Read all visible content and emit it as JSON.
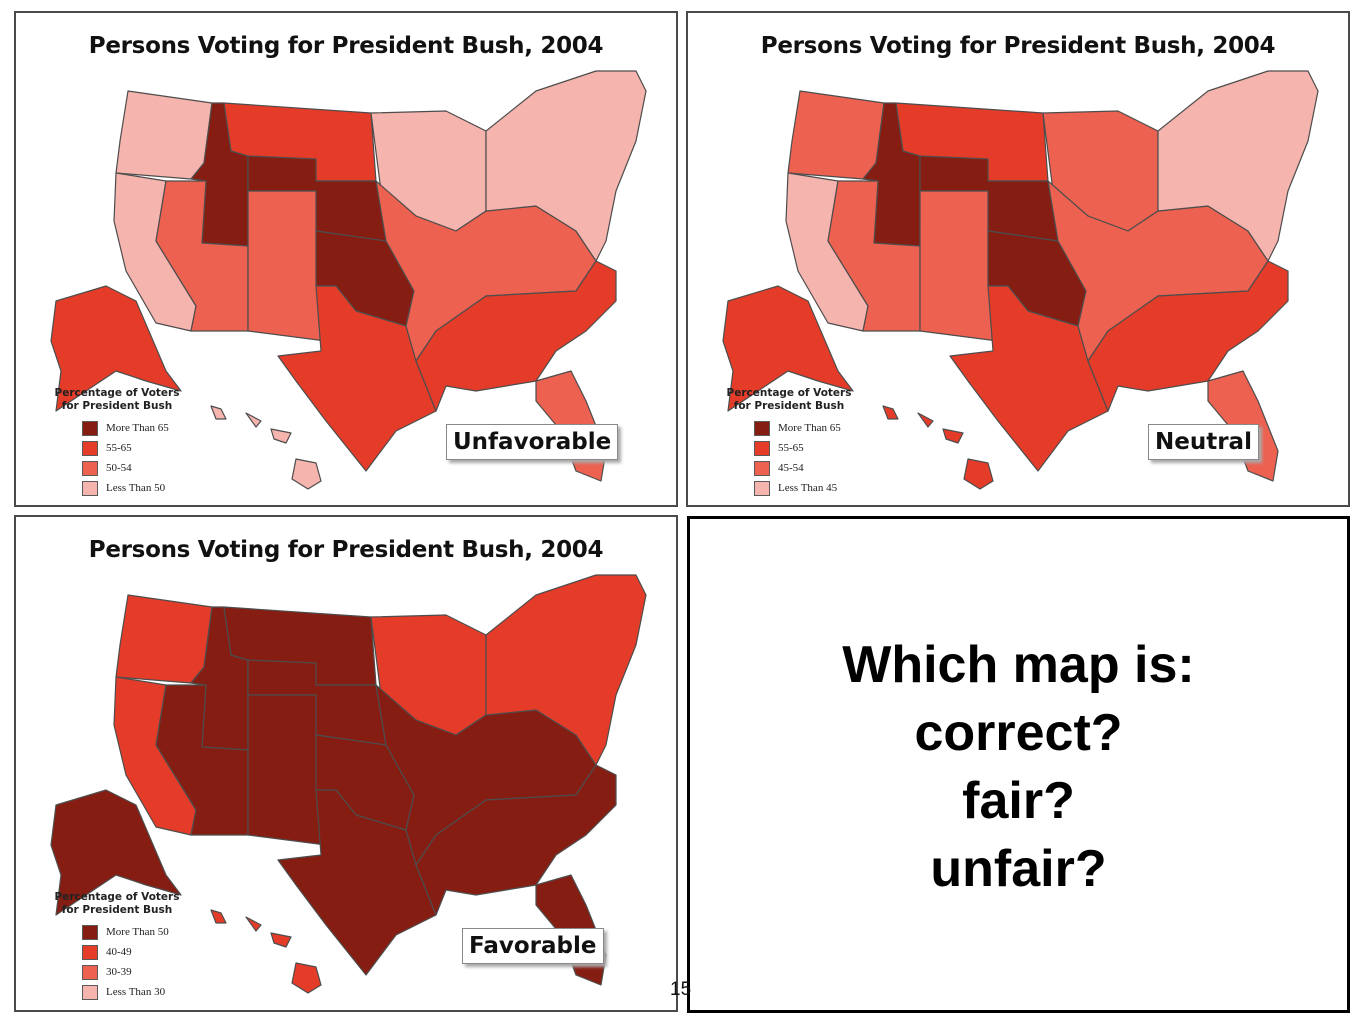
{
  "colors": {
    "darkest": "#861d12",
    "dark": "#e43c28",
    "medium": "#ec6150",
    "light": "#f5b4ad",
    "border": "#4d4d4d"
  },
  "maps": [
    {
      "title": "Persons Voting for President Bush, 2004",
      "label": "Unfavorable",
      "legend": {
        "title_line1": "Percentage of Voters",
        "title_line2": "for President Bush",
        "items": [
          {
            "label": "More Than 65",
            "color": "#861d12"
          },
          {
            "label": "55-65",
            "color": "#e43c28"
          },
          {
            "label": "50-54",
            "color": "#ec6150"
          },
          {
            "label": "Less Than 50",
            "color": "#f5b4ad"
          }
        ]
      },
      "regions": [
        {
          "name": "pacific-northwest",
          "color": "#f5b4ad"
        },
        {
          "name": "california",
          "color": "#f5b4ad"
        },
        {
          "name": "idaho-utah",
          "color": "#861d12"
        },
        {
          "name": "nevada-southwest",
          "color": "#ec6150"
        },
        {
          "name": "northern-plains",
          "color": "#e43c28"
        },
        {
          "name": "wyoming-nebraska",
          "color": "#861d12"
        },
        {
          "name": "colorado-newmexico",
          "color": "#ec6150"
        },
        {
          "name": "oklahoma",
          "color": "#861d12"
        },
        {
          "name": "texas-south",
          "color": "#e43c28"
        },
        {
          "name": "upper-midwest",
          "color": "#f5b4ad"
        },
        {
          "name": "midwest-central",
          "color": "#ec6150"
        },
        {
          "name": "southeast",
          "color": "#e43c28"
        },
        {
          "name": "florida",
          "color": "#ec6150"
        },
        {
          "name": "northeast",
          "color": "#f5b4ad"
        },
        {
          "name": "alaska",
          "color": "#e43c28"
        },
        {
          "name": "hawaii",
          "color": "#f5b4ad"
        }
      ]
    },
    {
      "title": "Persons Voting for President Bush, 2004",
      "label": "Neutral",
      "legend": {
        "title_line1": "Percentage of Voters",
        "title_line2": "for President Bush",
        "items": [
          {
            "label": "More Than 65",
            "color": "#861d12"
          },
          {
            "label": "55-65",
            "color": "#e43c28"
          },
          {
            "label": "45-54",
            "color": "#ec6150"
          },
          {
            "label": "Less Than 45",
            "color": "#f5b4ad"
          }
        ]
      },
      "regions": [
        {
          "name": "pacific-northwest",
          "color": "#ec6150"
        },
        {
          "name": "california",
          "color": "#f5b4ad"
        },
        {
          "name": "idaho-utah",
          "color": "#861d12"
        },
        {
          "name": "nevada-southwest",
          "color": "#ec6150"
        },
        {
          "name": "northern-plains",
          "color": "#e43c28"
        },
        {
          "name": "wyoming-nebraska",
          "color": "#861d12"
        },
        {
          "name": "colorado-newmexico",
          "color": "#ec6150"
        },
        {
          "name": "oklahoma",
          "color": "#861d12"
        },
        {
          "name": "texas-south",
          "color": "#e43c28"
        },
        {
          "name": "upper-midwest",
          "color": "#ec6150"
        },
        {
          "name": "midwest-central",
          "color": "#ec6150"
        },
        {
          "name": "southeast",
          "color": "#e43c28"
        },
        {
          "name": "florida",
          "color": "#ec6150"
        },
        {
          "name": "northeast",
          "color": "#f5b4ad"
        },
        {
          "name": "alaska",
          "color": "#e43c28"
        },
        {
          "name": "hawaii",
          "color": "#e43c28"
        }
      ]
    },
    {
      "title": "Persons Voting for President Bush, 2004",
      "label": "Favorable",
      "legend": {
        "title_line1": "Percentage of Voters",
        "title_line2": "for President Bush",
        "items": [
          {
            "label": "More Than 50",
            "color": "#861d12"
          },
          {
            "label": "40-49",
            "color": "#e43c28"
          },
          {
            "label": "30-39",
            "color": "#ec6150"
          },
          {
            "label": "Less Than 30",
            "color": "#f5b4ad"
          }
        ]
      },
      "regions": [
        {
          "name": "pacific-northwest",
          "color": "#e43c28"
        },
        {
          "name": "california",
          "color": "#e43c28"
        },
        {
          "name": "idaho-utah",
          "color": "#861d12"
        },
        {
          "name": "nevada-southwest",
          "color": "#861d12"
        },
        {
          "name": "northern-plains",
          "color": "#861d12"
        },
        {
          "name": "wyoming-nebraska",
          "color": "#861d12"
        },
        {
          "name": "colorado-newmexico",
          "color": "#861d12"
        },
        {
          "name": "oklahoma",
          "color": "#861d12"
        },
        {
          "name": "texas-south",
          "color": "#861d12"
        },
        {
          "name": "upper-midwest",
          "color": "#e43c28"
        },
        {
          "name": "midwest-central",
          "color": "#861d12"
        },
        {
          "name": "southeast",
          "color": "#861d12"
        },
        {
          "name": "florida",
          "color": "#861d12"
        },
        {
          "name": "northeast",
          "color": "#e43c28"
        },
        {
          "name": "alaska",
          "color": "#861d12"
        },
        {
          "name": "hawaii",
          "color": "#e43c28"
        }
      ]
    }
  ],
  "question": {
    "line1": "Which map is:",
    "line2": "correct?",
    "line3": "fair?",
    "line4": "unfair?"
  },
  "page_number": "15"
}
